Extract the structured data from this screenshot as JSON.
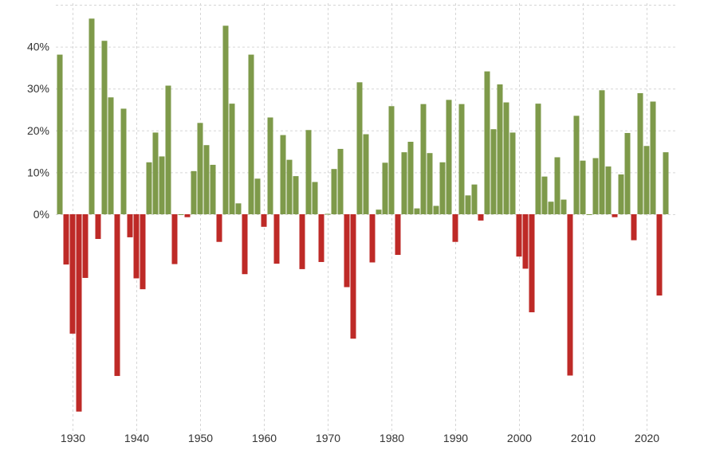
{
  "chart_data": {
    "type": "bar",
    "title": "",
    "xlabel": "",
    "ylabel": "",
    "y_unit": "%",
    "ylim": [
      -48,
      50
    ],
    "grid": true,
    "legend": "none",
    "colors": {
      "positive": "#7e9a4a",
      "negative": "#be2a27",
      "grid": "#d6d6d6"
    },
    "y_ticks": [
      0,
      10,
      20,
      30,
      40
    ],
    "y_tick_labels": [
      "0%",
      "10%",
      "20%",
      "30%",
      "40%"
    ],
    "x_ticks": [
      1930,
      1940,
      1950,
      1960,
      1970,
      1980,
      1990,
      2000,
      2010,
      2020
    ],
    "x_tick_labels": [
      "1930",
      "1940",
      "1950",
      "1960",
      "1970",
      "1980",
      "1990",
      "2000",
      "2010",
      "2020"
    ],
    "series": [
      {
        "x": [
          1928,
          1929,
          1930,
          1931,
          1932,
          1933,
          1934,
          1935,
          1936,
          1937,
          1938,
          1939,
          1940,
          1941,
          1942,
          1943,
          1944,
          1945,
          1946,
          1947,
          1948,
          1949,
          1950,
          1951,
          1952,
          1953,
          1954,
          1955,
          1956,
          1957,
          1958,
          1959,
          1960,
          1961,
          1962,
          1963,
          1964,
          1965,
          1966,
          1967,
          1968,
          1969,
          1970,
          1971,
          1972,
          1973,
          1974,
          1975,
          1976,
          1977,
          1978,
          1979,
          1980,
          1981,
          1982,
          1983,
          1984,
          1985,
          1986,
          1987,
          1988,
          1989,
          1990,
          1991,
          1992,
          1993,
          1994,
          1995,
          1996,
          1997,
          1998,
          1999,
          2000,
          2001,
          2002,
          2003,
          2004,
          2005,
          2006,
          2007,
          2008,
          2009,
          2010,
          2011,
          2012,
          2013,
          2014,
          2015,
          2016,
          2017,
          2018,
          2019,
          2020,
          2021,
          2022,
          2023
        ],
        "values": [
          38.1,
          -12.0,
          -28.5,
          -47.1,
          -15.2,
          46.7,
          -5.9,
          41.4,
          27.9,
          -38.6,
          25.2,
          -5.5,
          -15.3,
          -17.9,
          12.4,
          19.5,
          13.8,
          30.7,
          -11.9,
          0.0,
          -0.7,
          10.3,
          21.8,
          16.5,
          11.8,
          -6.6,
          45.0,
          26.4,
          2.6,
          -14.3,
          38.1,
          8.5,
          -3.0,
          23.1,
          -11.8,
          18.9,
          13.0,
          9.1,
          -13.1,
          20.1,
          7.7,
          -11.4,
          0.1,
          10.8,
          15.6,
          -17.4,
          -29.7,
          31.5,
          19.1,
          -11.5,
          1.1,
          12.3,
          25.8,
          -9.7,
          14.8,
          17.3,
          1.4,
          26.3,
          14.6,
          2.0,
          12.4,
          27.3,
          -6.6,
          26.3,
          4.5,
          7.1,
          -1.5,
          34.1,
          20.3,
          31.0,
          26.7,
          19.5,
          -10.1,
          -13.0,
          -23.4,
          26.4,
          9.0,
          3.0,
          13.6,
          3.5,
          -38.5,
          23.5,
          12.8,
          0.0,
          13.4,
          29.6,
          11.4,
          -0.7,
          9.5,
          19.4,
          -6.2,
          28.9,
          16.3,
          26.9,
          -19.4,
          14.8
        ]
      }
    ]
  }
}
